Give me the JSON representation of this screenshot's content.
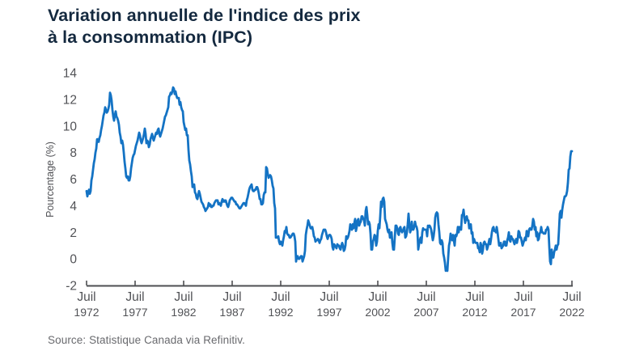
{
  "title": "Variation annuelle de l'indice des prix\nà la consommation (IPC)",
  "source": "Source: Statistique Canada via Refinitiv.",
  "colors": {
    "title": "#14293f",
    "line": "#1473c4",
    "axis": "#4e4f52",
    "tick_label": "#515256",
    "source_text": "#696a6e",
    "background": "#ffffff"
  },
  "chart_data": {
    "type": "line",
    "title": "Variation annuelle de l'indice des prix à la consommation (IPC)",
    "ylabel": "Pourcentage (%)",
    "xlabel": "",
    "ylim": [
      -2,
      14
    ],
    "grid": false,
    "legend": "none",
    "line_color": "#1473c4",
    "y_ticks": [
      14,
      12,
      10,
      8,
      6,
      4,
      2,
      0,
      -2
    ],
    "x_ticks": [
      {
        "month": "Juil",
        "year": "1972"
      },
      {
        "month": "Juil",
        "year": "1977"
      },
      {
        "month": "Juil",
        "year": "1982"
      },
      {
        "month": "Juil",
        "year": "1987"
      },
      {
        "month": "Juil",
        "year": "1992"
      },
      {
        "month": "Juil",
        "year": "1997"
      },
      {
        "month": "Juil",
        "year": "2002"
      },
      {
        "month": "Juil",
        "year": "2007"
      },
      {
        "month": "Juil",
        "year": "2012"
      },
      {
        "month": "Juil",
        "year": "2017"
      },
      {
        "month": "Juil",
        "year": "2022"
      }
    ],
    "x_start": "1972-07",
    "x_end": "2022-07",
    "frequency": "monthly",
    "series_name": "Variation annuelle de l'IPC (%)",
    "values": [
      5.1,
      4.7,
      5.0,
      5.2,
      4.9,
      5.1,
      5.9,
      6.2,
      6.7,
      7.2,
      7.5,
      8.0,
      8.3,
      9.0,
      9.0,
      8.8,
      9.1,
      9.3,
      9.7,
      10.0,
      10.4,
      10.8,
      11.0,
      11.4,
      11.2,
      11.0,
      11.1,
      11.3,
      11.6,
      12.5,
      12.3,
      11.9,
      11.2,
      10.7,
      10.4,
      10.8,
      11.1,
      10.7,
      10.6,
      10.4,
      10.1,
      9.5,
      9.2,
      8.7,
      8.9,
      8.6,
      8.0,
      7.3,
      6.8,
      6.2,
      6.1,
      6.2,
      5.9,
      5.9,
      6.2,
      6.8,
      7.2,
      7.6,
      7.8,
      7.9,
      8.2,
      8.5,
      8.7,
      8.9,
      9.2,
      9.5,
      9.3,
      8.9,
      8.7,
      8.9,
      9.1,
      9.4,
      9.8,
      9.4,
      8.7,
      8.9,
      8.8,
      8.4,
      8.6,
      9.0,
      9.2,
      9.4,
      9.1,
      8.9,
      9.1,
      9.3,
      9.5,
      9.4,
      9.7,
      9.8,
      9.4,
      9.2,
      9.4,
      9.6,
      9.8,
      10.1,
      10.4,
      10.7,
      10.8,
      11.0,
      11.2,
      11.4,
      12.2,
      12.3,
      12.5,
      12.4,
      12.6,
      12.9,
      12.8,
      12.4,
      12.6,
      12.3,
      12.1,
      12.1,
      12.1,
      11.6,
      11.8,
      11.4,
      11.2,
      11.1,
      10.3,
      10.0,
      9.7,
      9.8,
      9.3,
      9.3,
      8.2,
      7.4,
      7.1,
      6.6,
      6.2,
      5.4,
      5.5,
      5.6,
      5.0,
      4.9,
      4.6,
      4.5,
      4.8,
      5.1,
      4.9,
      4.6,
      4.3,
      4.2,
      4.1,
      3.9,
      3.8,
      3.6,
      3.7,
      3.8,
      3.9,
      4.2,
      4.0,
      4.1,
      3.9,
      3.9,
      4.0,
      4.0,
      4.2,
      4.3,
      4.4,
      4.4,
      4.4,
      4.1,
      4.2,
      4.1,
      4.0,
      4.3,
      4.5,
      4.3,
      4.4,
      4.3,
      4.4,
      4.2,
      4.0,
      3.9,
      4.1,
      4.4,
      4.5,
      4.6,
      4.6,
      4.5,
      4.4,
      4.3,
      4.3,
      4.1,
      4.1,
      4.0,
      3.9,
      3.8,
      3.8,
      3.9,
      4.0,
      4.1,
      4.2,
      4.2,
      4.1,
      4.0,
      4.4,
      4.6,
      4.9,
      5.2,
      5.4,
      5.5,
      5.6,
      5.2,
      5.1,
      5.1,
      5.2,
      5.2,
      5.4,
      5.4,
      5.2,
      4.9,
      4.5,
      4.5,
      4.1,
      4.1,
      4.2,
      4.8,
      5.0,
      5.0,
      6.9,
      6.8,
      6.4,
      6.1,
      6.2,
      6.3,
      6.2,
      5.9,
      5.5,
      5.3,
      4.2,
      3.8,
      1.6,
      1.6,
      1.6,
      1.7,
      1.3,
      1.1,
      1.3,
      1.2,
      1.0,
      1.4,
      1.7,
      2.1,
      2.0,
      2.4,
      1.9,
      1.8,
      1.8,
      1.6,
      1.6,
      1.7,
      1.8,
      1.9,
      1.9,
      1.7,
      1.3,
      -0.2,
      0.2,
      0.2,
      0.0,
      0.0,
      0.1,
      0.2,
      0.2,
      -0.2,
      0.0,
      0.2,
      0.6,
      1.8,
      2.2,
      2.5,
      2.9,
      2.7,
      2.5,
      2.3,
      2.3,
      2.4,
      2.1,
      1.7,
      1.6,
      1.3,
      1.4,
      1.4,
      1.5,
      1.4,
      1.2,
      1.4,
      1.5,
      1.8,
      2.0,
      2.2,
      2.2,
      2.2,
      2.0,
      1.7,
      1.5,
      1.7,
      1.8,
      1.8,
      1.7,
      1.5,
      0.9,
      0.7,
      1.1,
      1.0,
      0.9,
      0.8,
      1.1,
      1.0,
      1.0,
      0.8,
      0.7,
      1.0,
      1.2,
      1.0,
      0.6,
      0.7,
      1.0,
      1.7,
      1.5,
      1.6,
      1.8,
      2.1,
      2.6,
      2.3,
      2.2,
      2.6,
      2.3,
      2.7,
      3.0,
      2.1,
      2.4,
      2.9,
      3.0,
      2.5,
      2.7,
      2.8,
      3.2,
      3.2,
      3.0,
      2.9,
      2.5,
      3.6,
      3.9,
      3.3,
      2.6,
      2.8,
      2.6,
      1.9,
      0.7,
      0.7,
      1.3,
      1.5,
      1.8,
      1.7,
      1.0,
      1.3,
      2.1,
      2.6,
      2.3,
      3.2,
      4.3,
      3.9,
      4.5,
      4.6,
      4.3,
      3.0,
      2.8,
      2.6,
      2.2,
      2.0,
      2.2,
      1.6,
      1.6,
      2.0,
      1.2,
      0.7,
      0.7,
      1.6,
      2.5,
      2.5,
      2.3,
      1.9,
      1.8,
      2.3,
      2.4,
      2.1,
      2.0,
      2.1,
      2.3,
      2.4,
      1.6,
      1.7,
      2.0,
      2.6,
      3.4,
      2.6,
      2.0,
      2.2,
      2.8,
      2.2,
      2.2,
      2.4,
      2.8,
      2.5,
      2.4,
      2.1,
      0.7,
      1.1,
      1.4,
      1.6,
      1.2,
      2.0,
      2.3,
      2.2,
      2.2,
      2.2,
      2.2,
      1.7,
      2.5,
      2.4,
      2.5,
      2.4,
      2.2,
      1.8,
      1.4,
      1.7,
      2.2,
      3.1,
      3.4,
      3.5,
      3.4,
      2.6,
      2.0,
      1.2,
      1.1,
      1.4,
      1.2,
      0.4,
      0.1,
      -0.3,
      -0.9,
      -0.8,
      -0.9,
      0.1,
      1.0,
      1.3,
      1.9,
      1.6,
      1.4,
      1.8,
      1.4,
      1.0,
      1.8,
      1.7,
      1.9,
      2.4,
      2.0,
      2.4,
      2.3,
      2.2,
      3.3,
      3.3,
      3.7,
      3.1,
      2.7,
      3.1,
      3.2,
      2.9,
      2.9,
      2.3,
      2.5,
      2.6,
      1.9,
      2.0,
      1.2,
      1.5,
      1.3,
      1.2,
      1.2,
      1.2,
      0.8,
      0.8,
      0.5,
      1.2,
      1.0,
      0.4,
      0.7,
      1.2,
      1.3,
      1.1,
      1.1,
      0.7,
      0.9,
      1.2,
      1.5,
      1.1,
      1.5,
      2.0,
      2.3,
      2.4,
      2.1,
      2.1,
      2.0,
      2.4,
      2.0,
      1.5,
      1.0,
      1.0,
      1.2,
      0.8,
      0.9,
      1.0,
      1.3,
      1.3,
      1.0,
      1.0,
      1.4,
      1.6,
      2.0,
      1.4,
      1.3,
      1.7,
      1.5,
      1.5,
      1.3,
      1.1,
      1.3,
      1.5,
      1.2,
      1.5,
      2.1,
      2.0,
      1.6,
      1.6,
      1.3,
      1.0,
      1.2,
      1.4,
      1.6,
      1.4,
      2.1,
      1.9,
      1.7,
      2.2,
      2.3,
      2.2,
      2.2,
      2.5,
      3.0,
      2.8,
      2.2,
      2.4,
      1.7,
      2.0,
      1.4,
      1.5,
      1.9,
      2.0,
      2.4,
      2.0,
      2.0,
      1.9,
      1.9,
      1.9,
      2.2,
      2.2,
      2.4,
      2.2,
      0.9,
      -0.2,
      -0.4,
      0.7,
      0.1,
      0.1,
      0.5,
      0.7,
      1.0,
      0.7,
      1.0,
      1.1,
      2.2,
      3.4,
      3.6,
      3.1,
      3.7,
      4.1,
      4.4,
      4.7,
      4.7,
      4.8,
      5.1,
      5.7,
      6.7,
      6.8,
      7.7,
      8.1,
      8.1
    ]
  }
}
